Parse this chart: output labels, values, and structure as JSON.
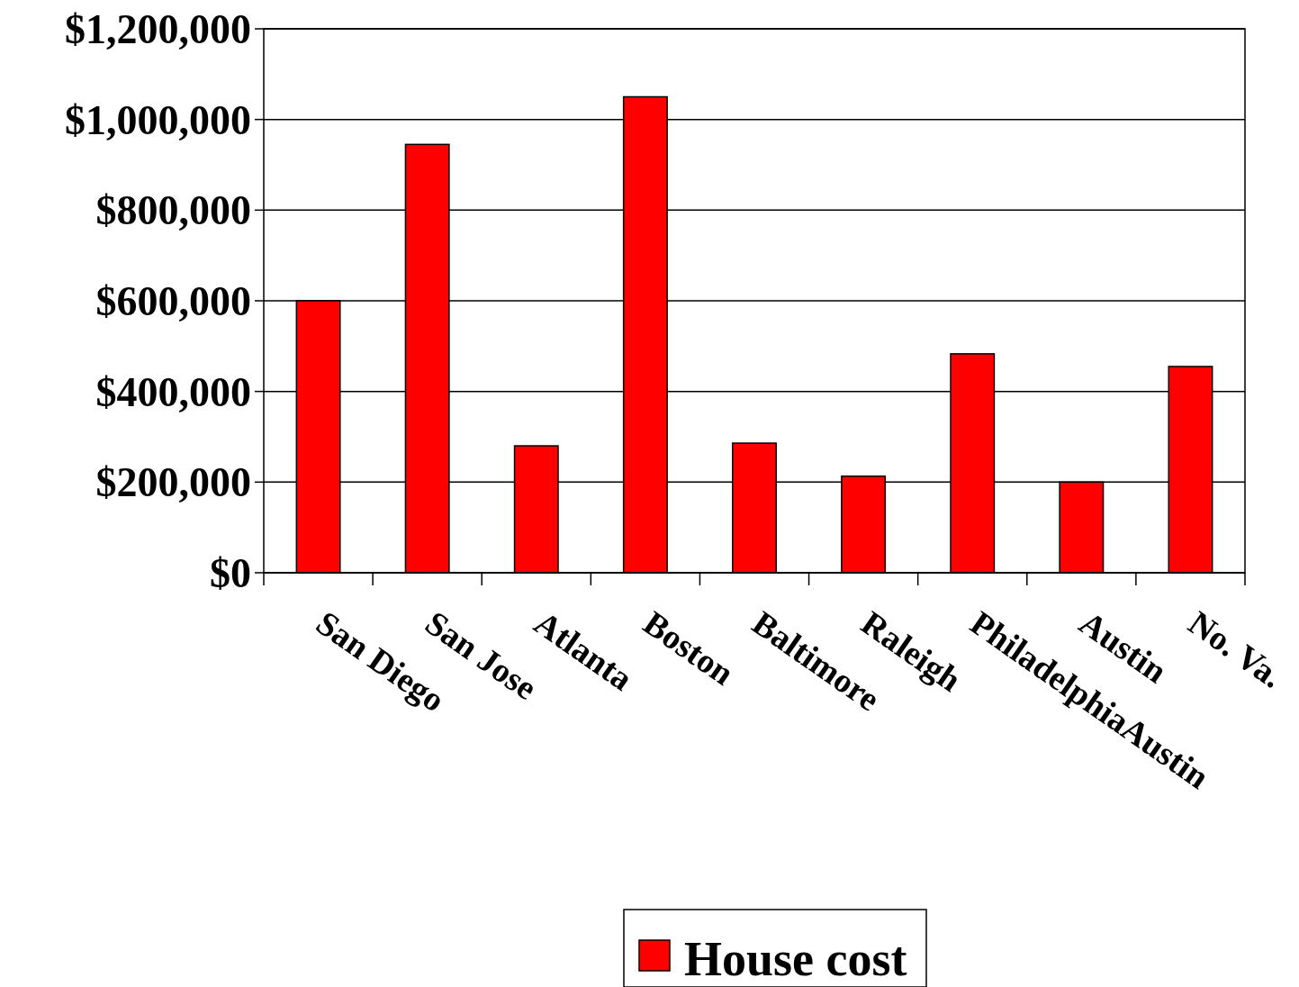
{
  "chart_data": {
    "type": "bar",
    "categories": [
      "San Diego",
      "San Jose",
      "Atlanta",
      "Boston",
      "Baltimore",
      "Raleigh",
      "PhiladelphiaAustin",
      "Austin",
      "No. Va."
    ],
    "series": [
      {
        "name": "House cost",
        "color": "#ff0000",
        "values": [
          600000,
          945000,
          280000,
          1050000,
          286000,
          213000,
          483000,
          200000,
          455000
        ]
      }
    ],
    "ylim": [
      0,
      1200000
    ],
    "yticks": [
      {
        "value": 0,
        "label": "$0"
      },
      {
        "value": 200000,
        "label": "$200,000"
      },
      {
        "value": 400000,
        "label": "$400,000"
      },
      {
        "value": 600000,
        "label": "$600,000"
      },
      {
        "value": 800000,
        "label": "$800,000"
      },
      {
        "value": 1000000,
        "label": "$1,000,000"
      },
      {
        "value": 1200000,
        "label": "$1,200,000"
      }
    ],
    "grid": "y",
    "legend": "bottom"
  }
}
